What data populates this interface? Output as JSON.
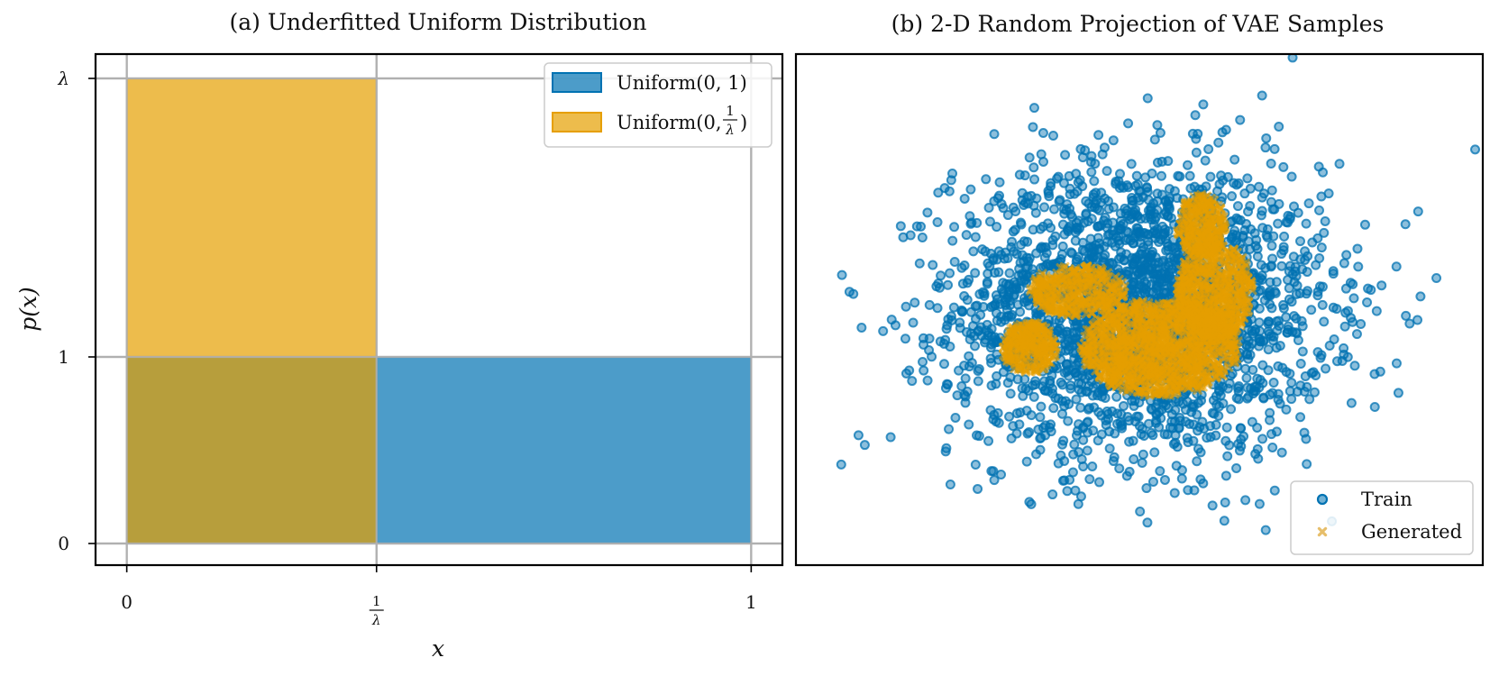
{
  "chart_data": [
    {
      "type": "area",
      "title": "(a) Underfitted Uniform Distribution",
      "xlabel": "x",
      "ylabel": "p(x)",
      "xlim": [
        -0.05,
        1.05
      ],
      "ylim": [
        -0.04,
        1.06
      ],
      "lambda_value": 2.5,
      "x_ticks": [
        {
          "value": 0,
          "label": "0"
        },
        {
          "value": 0.4,
          "label": "1/λ",
          "num": "1",
          "den": "λ"
        },
        {
          "value": 1,
          "label": "1"
        }
      ],
      "y_ticks": [
        {
          "value": 0,
          "label": "0"
        },
        {
          "value": 1,
          "label": "1"
        },
        {
          "value": 2.5,
          "label": "λ"
        }
      ],
      "grid": true,
      "legend_position": "top-right",
      "series": [
        {
          "name": "Uniform(0, 1)",
          "x_range": [
            0,
            1
          ],
          "density": 1,
          "color": "#0072B2"
        },
        {
          "name": "Uniform(0, 1/λ)",
          "name_prefix": "Uniform(0, ",
          "name_frac_num": "1",
          "name_frac_den": "λ",
          "name_suffix": ")",
          "x_range": [
            0,
            0.4
          ],
          "density": 2.5,
          "color": "#E69F00"
        }
      ]
    },
    {
      "type": "scatter",
      "title": "(b) 2-D Random Projection of VAE Samples",
      "axes_visible": false,
      "legend_position": "bottom-right",
      "xlim": [
        -5,
        5
      ],
      "ylim": [
        -4,
        4
      ],
      "series": [
        {
          "name": "Train",
          "marker": "circle",
          "color": "#0072B2",
          "distribution": "gaussian cloud",
          "center": [
            0,
            0
          ],
          "spread": [
            1.35,
            1.15
          ],
          "approx_points": 2600
        },
        {
          "name": "Generated",
          "marker": "x",
          "color": "#E69F00",
          "distribution": "dense blob inside train cloud",
          "approx_points": 2600
        }
      ]
    }
  ]
}
